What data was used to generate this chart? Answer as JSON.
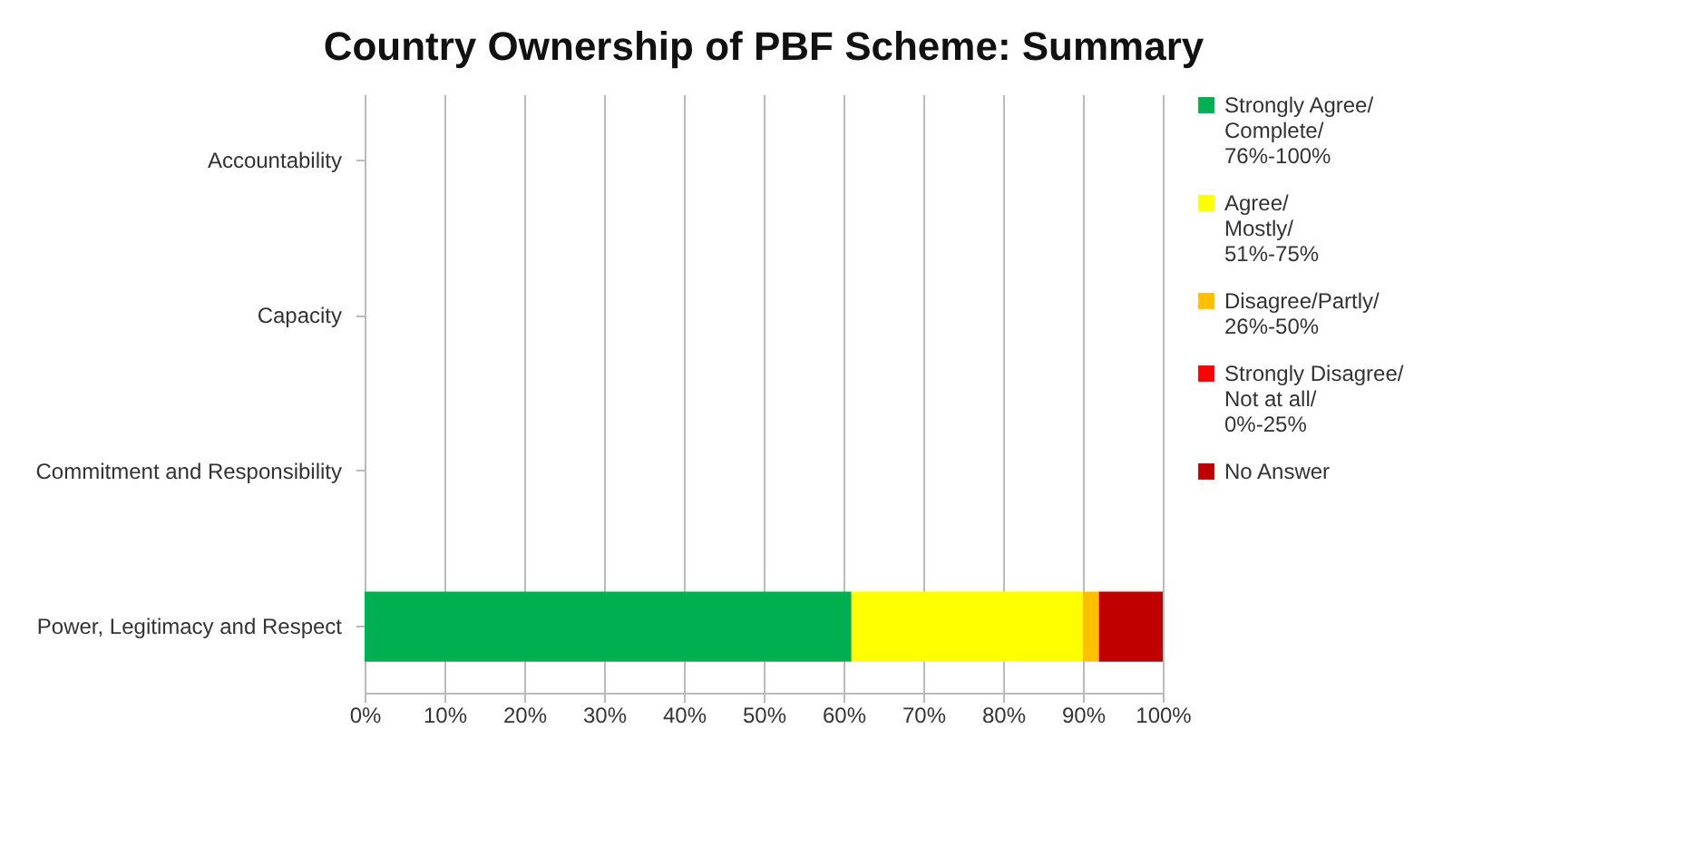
{
  "chart_data": {
    "type": "bar",
    "orientation": "horizontal",
    "stacked": true,
    "title": "Country Ownership of PBF Scheme: Summary",
    "categories": [
      "Accountability",
      "Capacity",
      "Commitment and Responsibility",
      "Power, Legitimacy and Respect"
    ],
    "series": [
      {
        "name": "Strongly Agree/ Complete/ 76%-100%",
        "color": "#00b050",
        "values": [
          null,
          null,
          null,
          61
        ]
      },
      {
        "name": "Agree/ Mostly/ 51%-75%",
        "color": "#ffff00",
        "values": [
          null,
          null,
          null,
          29
        ]
      },
      {
        "name": "Disagree/Partly/ 26%-50%",
        "color": "#ffc000",
        "values": [
          null,
          null,
          null,
          2
        ]
      },
      {
        "name": "Strongly Disagree/ Not at all/ 0%-25%",
        "color": "#ff0000",
        "values": [
          null,
          null,
          null,
          0
        ]
      },
      {
        "name": "No Answer",
        "color": "#c00000",
        "values": [
          null,
          null,
          null,
          8
        ]
      }
    ],
    "xlim": [
      0,
      100
    ],
    "xticks": [
      {
        "value": 0,
        "label": "0%"
      },
      {
        "value": 10,
        "label": "10%"
      },
      {
        "value": 20,
        "label": "20%"
      },
      {
        "value": 30,
        "label": "30%"
      },
      {
        "value": 40,
        "label": "40%"
      },
      {
        "value": 50,
        "label": "50%"
      },
      {
        "value": 60,
        "label": "60%"
      },
      {
        "value": 70,
        "label": "70%"
      },
      {
        "value": 80,
        "label": "80%"
      },
      {
        "value": 90,
        "label": "90%"
      },
      {
        "value": 100,
        "label": "100%"
      }
    ],
    "grid": "x",
    "legend": "right"
  }
}
